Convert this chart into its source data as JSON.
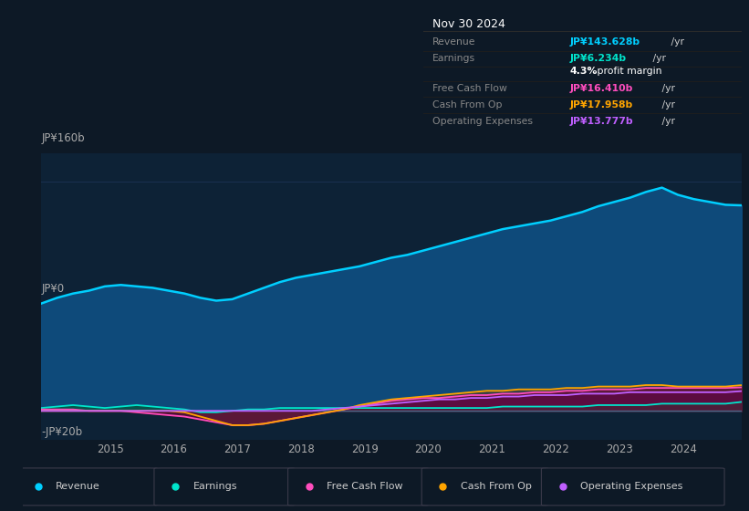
{
  "bg_color": "#0d1926",
  "plot_bg_color": "#0d2236",
  "grid_color": "#1a3050",
  "title_date": "Nov 30 2024",
  "tooltip_rows": [
    {
      "label": "Revenue",
      "value": "JP¥143.628b /yr",
      "value_color": "#00cfff",
      "label_color": "#888888"
    },
    {
      "label": "Earnings",
      "value": "JP¥6.234b /yr",
      "value_color": "#00e5cc",
      "label_color": "#888888"
    },
    {
      "label": "",
      "value": "4.3% profit margin",
      "value_color": "#ffffff",
      "label_color": "#888888",
      "bold_prefix": "4.3%"
    },
    {
      "label": "Free Cash Flow",
      "value": "JP¥16.410b /yr",
      "value_color": "#ff4dbd",
      "label_color": "#888888"
    },
    {
      "label": "Cash From Op",
      "value": "JP¥17.958b /yr",
      "value_color": "#ffa500",
      "label_color": "#888888"
    },
    {
      "label": "Operating Expenses",
      "value": "JP¥13.777b /yr",
      "value_color": "#bf5fff",
      "label_color": "#888888"
    }
  ],
  "years": [
    2013.92,
    2014.17,
    2014.42,
    2014.67,
    2014.92,
    2015.17,
    2015.42,
    2015.67,
    2015.92,
    2016.17,
    2016.42,
    2016.67,
    2016.92,
    2017.17,
    2017.42,
    2017.67,
    2017.92,
    2018.17,
    2018.42,
    2018.67,
    2018.92,
    2019.17,
    2019.42,
    2019.67,
    2019.92,
    2020.17,
    2020.42,
    2020.67,
    2020.92,
    2021.17,
    2021.42,
    2021.67,
    2021.92,
    2022.17,
    2022.42,
    2022.67,
    2022.92,
    2023.17,
    2023.42,
    2023.67,
    2023.92,
    2024.17,
    2024.42,
    2024.67,
    2024.92
  ],
  "revenue": [
    75,
    79,
    82,
    84,
    87,
    88,
    87,
    86,
    84,
    82,
    79,
    77,
    78,
    82,
    86,
    90,
    93,
    95,
    97,
    99,
    101,
    104,
    107,
    109,
    112,
    115,
    118,
    121,
    124,
    127,
    129,
    131,
    133,
    136,
    139,
    143,
    146,
    149,
    153,
    156,
    151,
    148,
    146,
    144,
    143.628
  ],
  "earnings": [
    2,
    3,
    4,
    3,
    2,
    3,
    4,
    3,
    2,
    1,
    -1,
    -1,
    0,
    1,
    1,
    2,
    2,
    2,
    2,
    2,
    2,
    2,
    2,
    2,
    2,
    2,
    2,
    2,
    2,
    3,
    3,
    3,
    3,
    3,
    3,
    4,
    4,
    4,
    4,
    5,
    5,
    5,
    5,
    5,
    6.234
  ],
  "free_cash_flow": [
    1,
    1,
    1,
    0,
    0,
    0,
    -1,
    -2,
    -3,
    -4,
    -6,
    -8,
    -10,
    -10,
    -9,
    -7,
    -5,
    -3,
    -1,
    1,
    3,
    5,
    7,
    8,
    9,
    9,
    10,
    11,
    11,
    12,
    12,
    13,
    13,
    14,
    14,
    15,
    15,
    15,
    16,
    16,
    16,
    16,
    16,
    16,
    16.41
  ],
  "cash_from_op": [
    0,
    0,
    0,
    0,
    0,
    0,
    0,
    0,
    0,
    -1,
    -4,
    -7,
    -10,
    -10,
    -9,
    -7,
    -5,
    -3,
    -1,
    1,
    4,
    6,
    8,
    9,
    10,
    11,
    12,
    13,
    14,
    14,
    15,
    15,
    15,
    16,
    16,
    17,
    17,
    17,
    18,
    18,
    17,
    17,
    17,
    17,
    17.958
  ],
  "operating_expenses": [
    0,
    0,
    0,
    0,
    0,
    0,
    0,
    0,
    0,
    0,
    0,
    0,
    0,
    0,
    0,
    0,
    0,
    0,
    1,
    2,
    3,
    4,
    5,
    6,
    7,
    8,
    8,
    9,
    9,
    10,
    10,
    11,
    11,
    11,
    12,
    12,
    12,
    13,
    13,
    13,
    13,
    13,
    13,
    13,
    13.777
  ],
  "ylim": [
    -20,
    180
  ],
  "yticks": [
    -20,
    0,
    160
  ],
  "ytick_labels": [
    "-JP¥20b",
    "JP¥0",
    "JP¥160b"
  ],
  "xticks": [
    2015,
    2016,
    2017,
    2018,
    2019,
    2020,
    2021,
    2022,
    2023,
    2024
  ],
  "legend": [
    {
      "label": "Revenue",
      "color": "#00cfff"
    },
    {
      "label": "Earnings",
      "color": "#00e5cc"
    },
    {
      "label": "Free Cash Flow",
      "color": "#ff4dbd"
    },
    {
      "label": "Cash From Op",
      "color": "#ffa500"
    },
    {
      "label": "Operating Expenses",
      "color": "#bf5fff"
    }
  ],
  "line_colors": {
    "revenue": "#00cfff",
    "earnings": "#00e5cc",
    "free_cash_flow": "#ff4dbd",
    "cash_from_op": "#ffa500",
    "operating_expenses": "#bf5fff"
  },
  "fill_colors": {
    "revenue": "#0e4a7a",
    "earnings": "#085544",
    "free_cash_flow": "#6a0a35",
    "cash_from_op": "#404040",
    "operating_expenses": "#3d1060"
  }
}
